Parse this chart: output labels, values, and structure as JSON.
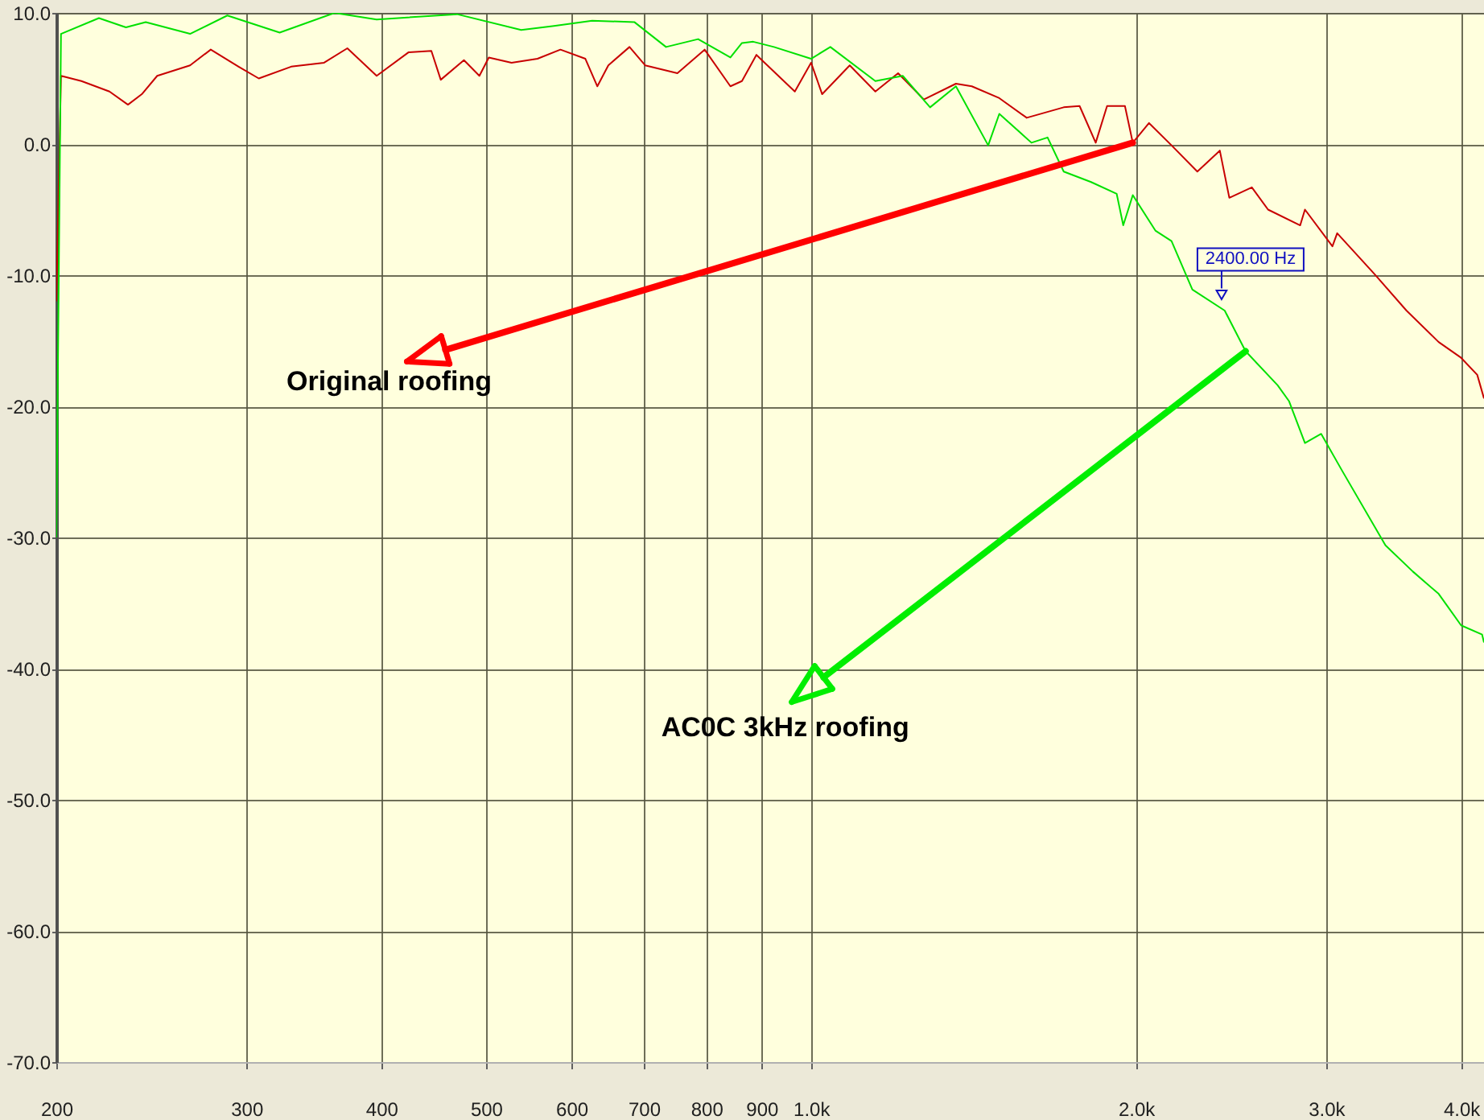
{
  "chart_data": {
    "type": "line",
    "log": "x",
    "grid": true,
    "xlim": [
      200,
      4200
    ],
    "ylim": [
      -70,
      10
    ],
    "xticks": [
      200,
      300,
      400,
      500,
      600,
      700,
      800,
      900,
      {
        "value": 1000,
        "label": "1.0k"
      },
      {
        "value": 2000,
        "label": "2.0k"
      },
      {
        "value": 3000,
        "label": "3.0k"
      },
      {
        "value": 4000,
        "label": "4.0k"
      }
    ],
    "yticks": [
      {
        "value": -70,
        "label": "-70.0"
      },
      {
        "value": -60,
        "label": "-60.0"
      },
      {
        "value": -50,
        "label": "-50.0"
      },
      {
        "value": -40,
        "label": "-40.0"
      },
      {
        "value": -30,
        "label": "-30.0"
      },
      {
        "value": -20,
        "label": "-20.0"
      },
      {
        "value": -10,
        "label": "-10.0"
      },
      {
        "value": 0,
        "label": "0.0"
      },
      {
        "value": 10,
        "label": "10.0"
      }
    ],
    "series": [
      {
        "color": "#c80000",
        "x": [
          200,
          202,
          211,
          224,
          233,
          240,
          248,
          266,
          278,
          295,
          308,
          330,
          354,
          372,
          396,
          424,
          445,
          454,
          477,
          493,
          503,
          528,
          558,
          586,
          618,
          634,
          649,
          679,
          702,
          752,
          797,
          842,
          863,
          890,
          966,
          1000,
          1024,
          1086,
          1147,
          1204,
          1272,
          1362,
          1409,
          1494,
          1584,
          1714,
          1773,
          1835,
          1880,
          1953,
          1986,
          2056,
          2157,
          2279,
          2391,
          2440,
          2560,
          2650,
          2838,
          2867,
          3040,
          3071,
          3324,
          3560,
          3813,
          4000,
          4140,
          4200
        ],
        "values": [
          -12,
          5.2,
          4.8,
          4.0,
          3.0,
          3.8,
          5.2,
          6.0,
          7.2,
          5.9,
          5.0,
          5.9,
          6.2,
          7.3,
          5.2,
          7.0,
          7.1,
          4.9,
          6.4,
          5.2,
          6.6,
          6.2,
          6.5,
          7.2,
          6.5,
          4.4,
          6.0,
          7.4,
          6.0,
          5.4,
          7.2,
          4.4,
          4.8,
          6.8,
          4.0,
          6.2,
          3.8,
          6.0,
          4.0,
          5.4,
          3.4,
          4.6,
          4.4,
          3.5,
          2.0,
          2.8,
          2.9,
          0.1,
          2.9,
          2.9,
          0.1,
          1.6,
          -0.1,
          -2.1,
          -0.5,
          -4.1,
          -3.3,
          -5.0,
          -6.2,
          -5.0,
          -7.8,
          -6.8,
          -9.9,
          -12.7,
          -15.1,
          -16.3,
          -17.6,
          -19.4
        ]
      },
      {
        "color": "#00e000",
        "x": [
          200,
          202,
          219,
          232,
          242,
          266,
          288,
          322,
          362,
          396,
          470,
          539,
          578,
          627,
          686,
          734,
          786,
          842,
          863,
          884,
          924,
          1000,
          1042,
          1147,
          1216,
          1289,
          1362,
          1459,
          1494,
          1600,
          1656,
          1714,
          1817,
          1919,
          1946,
          1986,
          2084,
          2157,
          2255,
          2416,
          2526,
          2705,
          2771,
          2867,
          2968,
          3103,
          3404,
          3609,
          3813,
          4000,
          4183,
          4200
        ],
        "values": [
          -30,
          8.4,
          9.6,
          8.9,
          9.3,
          8.4,
          9.8,
          8.5,
          10,
          9.5,
          9.9,
          8.7,
          9.0,
          9.4,
          9.3,
          7.4,
          8.0,
          6.6,
          7.7,
          7.8,
          7.4,
          6.5,
          7.4,
          4.8,
          5.2,
          2.8,
          4.4,
          -0.1,
          2.3,
          0.1,
          0.5,
          -2.1,
          -2.9,
          -3.8,
          -6.2,
          -3.9,
          -6.6,
          -7.4,
          -11.1,
          -12.7,
          -15.8,
          -18.4,
          -19.6,
          -22.8,
          -22.1,
          -24.9,
          -30.6,
          -32.6,
          -34.3,
          -36.7,
          -37.4,
          -38.0
        ]
      }
    ],
    "annotations": [
      {
        "text": "Original roofing",
        "x": 1986,
        "y": 0.1
      },
      {
        "text": "AC0C 3kHz roofing",
        "x": 2526,
        "y": -15.8
      },
      {
        "text": "2400.00 Hz",
        "x": 2400,
        "y": -11.5
      }
    ]
  }
}
